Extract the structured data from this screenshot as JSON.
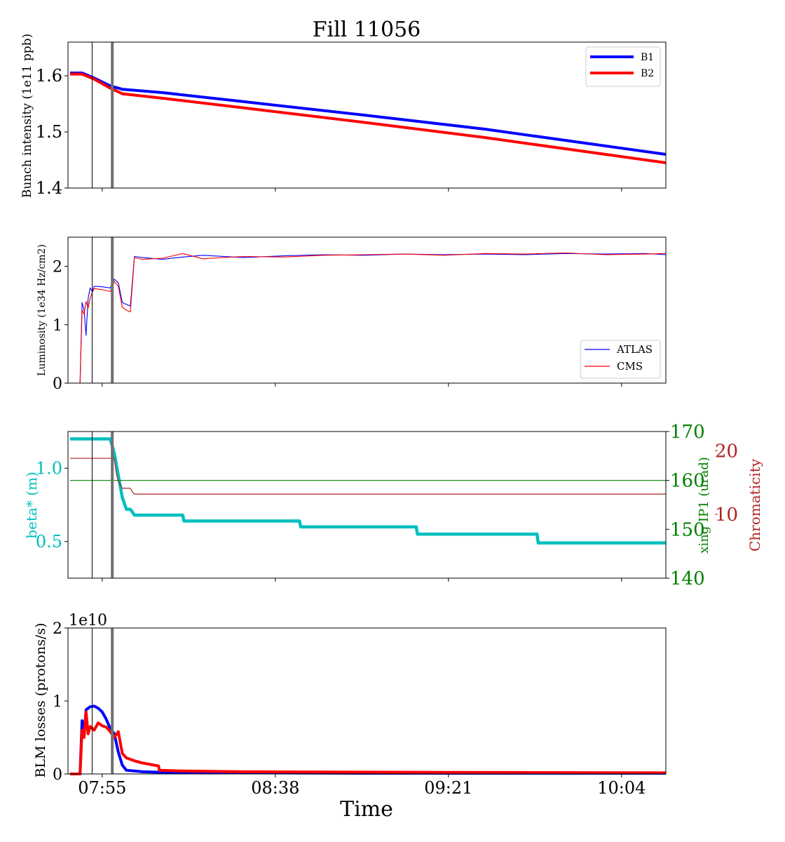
{
  "figure": {
    "title": "Fill 11056",
    "xlabel": "Time",
    "x_ticks": [
      "07:55",
      "08:38",
      "09:21",
      "10:04"
    ],
    "colors": {
      "b1": "#0000ff",
      "b2": "#ff0000",
      "beta": "#00bfbf",
      "xing": "#008000",
      "chroma": "#b22222",
      "marker_thin": "#000000",
      "marker_thick": "#707070"
    }
  },
  "chart_data": [
    {
      "type": "line",
      "ylabel": "Bunch intensity (1e11 ppb)",
      "ylim": [
        1.4,
        1.66
      ],
      "y_ticks": [
        "1.4",
        "1.5",
        "1.6"
      ],
      "legend_position": "top-right",
      "series": [
        {
          "name": "B1",
          "x": [
            "07:47",
            "07:50",
            "07:53",
            "07:57",
            "08:00",
            "08:10",
            "08:30",
            "09:00",
            "09:30",
            "10:00",
            "10:15"
          ],
          "y": [
            1.605,
            1.605,
            1.596,
            1.582,
            1.576,
            1.57,
            1.554,
            1.53,
            1.505,
            1.475,
            1.46
          ]
        },
        {
          "name": "B2",
          "x": [
            "07:47",
            "07:50",
            "07:53",
            "07:57",
            "08:00",
            "08:10",
            "08:30",
            "09:00",
            "09:30",
            "10:00",
            "10:15"
          ],
          "y": [
            1.603,
            1.603,
            1.594,
            1.578,
            1.568,
            1.56,
            1.543,
            1.517,
            1.49,
            1.46,
            1.445
          ]
        }
      ]
    },
    {
      "type": "line",
      "ylabel": "Luminosity (1e34 Hz/cm2)",
      "ylim": [
        0,
        2.5
      ],
      "y_ticks": [
        "0",
        "1",
        "2"
      ],
      "legend_position": "bottom-right",
      "series": [
        {
          "name": "ATLAS",
          "x": [
            "07:47",
            "07:49.5",
            "07:50",
            "07:50.5",
            "07:51",
            "07:51.5",
            "07:52",
            "07:52.5",
            "07:53",
            "07:55",
            "07:57",
            "07:58",
            "07:59",
            "08:00",
            "08:01",
            "08:02",
            "08:03",
            "08:05",
            "08:10",
            "08:15",
            "08:20",
            "08:30",
            "08:40",
            "08:50",
            "09:00",
            "09:10",
            "09:20",
            "09:30",
            "09:40",
            "09:50",
            "10:00",
            "10:10",
            "10:15"
          ],
          "y": [
            0,
            0,
            1.38,
            1.25,
            0.82,
            1.45,
            1.63,
            1.57,
            1.66,
            1.65,
            1.63,
            1.78,
            1.72,
            1.38,
            1.35,
            1.32,
            2.17,
            2.15,
            2.12,
            2.16,
            2.19,
            2.15,
            2.18,
            2.2,
            2.19,
            2.21,
            2.2,
            2.21,
            2.2,
            2.22,
            2.21,
            2.22,
            2.2
          ]
        },
        {
          "name": "CMS",
          "x": [
            "07:47",
            "07:49.5",
            "07:50",
            "07:50.5",
            "07:51",
            "07:51.5",
            "07:52",
            "07:52.5",
            "07:53",
            "07:55",
            "07:57",
            "07:58",
            "07:59",
            "08:00",
            "08:01",
            "08:02",
            "08:03",
            "08:05",
            "08:10",
            "08:15",
            "08:20",
            "08:30",
            "08:40",
            "08:50",
            "09:00",
            "09:10",
            "09:20",
            "09:30",
            "09:40",
            "09:50",
            "10:00",
            "10:10",
            "10:15"
          ],
          "y": [
            0,
            0,
            1.25,
            1.18,
            1.4,
            1.28,
            1.45,
            1.55,
            1.62,
            1.6,
            1.57,
            1.74,
            1.66,
            1.3,
            1.25,
            1.22,
            2.15,
            2.12,
            2.14,
            2.22,
            2.13,
            2.17,
            2.16,
            2.19,
            2.2,
            2.21,
            2.19,
            2.22,
            2.21,
            2.23,
            2.2,
            2.21,
            2.22
          ]
        }
      ]
    },
    {
      "type": "line",
      "ylabel": "beta* (m)",
      "ylim": [
        0.25,
        1.25
      ],
      "y_ticks": [
        "0.5",
        "1.0"
      ],
      "ylabel_right": "xing IP1 (urad)",
      "ylim_right": [
        140,
        170
      ],
      "y_ticks_right": [
        "140",
        "150",
        "160",
        "170"
      ],
      "ylabel_right2": "Chromaticity",
      "y_ticks_right2": [
        "10",
        "20"
      ],
      "series": [
        {
          "name": "beta*",
          "axis": "left",
          "x": [
            "07:47",
            "07:57",
            "07:58",
            "07:59",
            "08:00",
            "08:01",
            "08:02",
            "08:03",
            "08:15",
            "08:15.3",
            "08:44",
            "08:44.3",
            "09:13",
            "09:13.3",
            "09:43",
            "09:43.3",
            "10:15"
          ],
          "y": [
            1.2,
            1.2,
            1.1,
            0.95,
            0.8,
            0.72,
            0.72,
            0.68,
            0.68,
            0.64,
            0.64,
            0.6,
            0.6,
            0.55,
            0.55,
            0.49,
            0.49
          ]
        },
        {
          "name": "xing IP1",
          "axis": "right",
          "x": [
            "07:47",
            "10:15"
          ],
          "y": [
            160,
            160
          ]
        },
        {
          "name": "Chromaticity",
          "axis": "right2",
          "ylim": [
            0,
            23
          ],
          "x": [
            "07:47",
            "07:58",
            "07:58.5",
            "07:59",
            "08:00",
            "08:02",
            "08:02.5",
            "08:03",
            "10:15"
          ],
          "y": [
            18.8,
            18.8,
            16.5,
            15.2,
            14.1,
            14.1,
            13.5,
            13.2,
            13.2
          ]
        }
      ]
    },
    {
      "type": "line",
      "ylabel": "BLM losses (protons/s)",
      "ylim": [
        0,
        20000000000
      ],
      "y_ticks": [
        "0",
        "1",
        "2"
      ],
      "offset_label": "1e10",
      "series": [
        {
          "name": "B1",
          "x": [
            "07:47",
            "07:49.5",
            "07:50",
            "07:50.5",
            "07:51",
            "07:52",
            "07:53",
            "07:54",
            "07:55",
            "07:56",
            "07:57",
            "07:58",
            "07:59",
            "08:00",
            "08:01",
            "08:03",
            "08:05",
            "08:08",
            "08:15",
            "08:30",
            "09:00",
            "10:15"
          ],
          "y": [
            0,
            0,
            7300000000.0,
            5500000000.0,
            8800000000.0,
            9200000000.0,
            9300000000.0,
            9000000000.0,
            8500000000.0,
            7500000000.0,
            6200000000.0,
            5500000000.0,
            3000000000.0,
            1200000000.0,
            500000000.0,
            400000000.0,
            300000000.0,
            250000000.0,
            200000000.0,
            150000000.0,
            100000000.0,
            100000000.0
          ]
        },
        {
          "name": "B2",
          "x": [
            "07:47",
            "07:49.5",
            "07:50",
            "07:50.5",
            "07:51",
            "07:51.5",
            "07:52",
            "07:53",
            "07:54",
            "07:55",
            "07:56",
            "07:57",
            "07:58",
            "07:59",
            "08:00",
            "08:01",
            "08:03",
            "08:05",
            "08:09",
            "08:09.2",
            "08:15",
            "08:30",
            "09:00",
            "09:30",
            "10:15"
          ],
          "y": [
            0,
            0,
            6000000000.0,
            5000000000.0,
            8500000000.0,
            5500000000.0,
            6500000000.0,
            6000000000.0,
            7000000000.0,
            6600000000.0,
            6400000000.0,
            5800000000.0,
            5000000000.0,
            5800000000.0,
            2800000000.0,
            2200000000.0,
            1800000000.0,
            1500000000.0,
            1100000000.0,
            500000000.0,
            400000000.0,
            300000000.0,
            250000000.0,
            200000000.0,
            150000000.0
          ]
        }
      ]
    }
  ]
}
